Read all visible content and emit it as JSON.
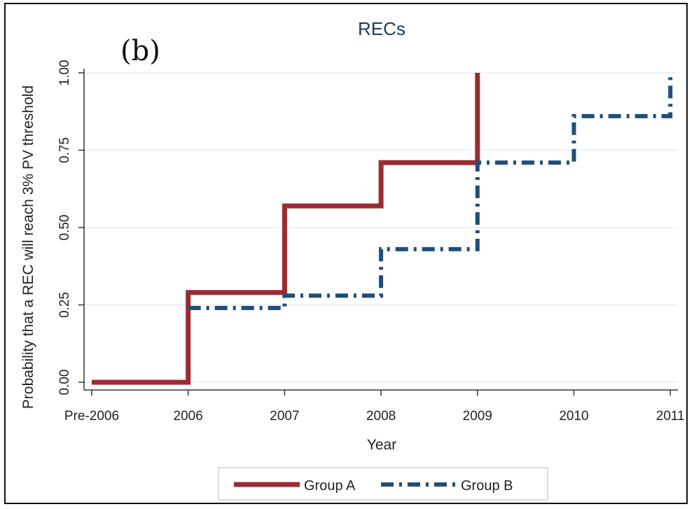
{
  "panel_label": "(b)",
  "chart_data": {
    "type": "line",
    "step": true,
    "title": "RECs",
    "xlabel": "Year",
    "ylabel": "Probability that a REC will reach 3% PV threshold",
    "categories": [
      "Pre-2006",
      "2006",
      "2007",
      "2008",
      "2009",
      "2010",
      "2011"
    ],
    "yticks": [
      "0.00",
      "0.25",
      "0.50",
      "0.75",
      "1.00"
    ],
    "ylim": [
      0,
      1
    ],
    "grid": true,
    "legend_position": "bottom",
    "series": [
      {
        "name": "Group A",
        "color": "#9b2c33",
        "style": "solid",
        "points": [
          [
            "Pre-2006",
            0.0
          ],
          [
            "2006",
            0.0
          ],
          [
            "2006",
            0.29
          ],
          [
            "2007",
            0.29
          ],
          [
            "2007",
            0.57
          ],
          [
            "2008",
            0.57
          ],
          [
            "2008",
            0.71
          ],
          [
            "2009",
            0.71
          ],
          [
            "2009",
            1.0
          ]
        ]
      },
      {
        "name": "Group B",
        "color": "#1f4e79",
        "style": "dash-dot",
        "points": [
          [
            "2006",
            0.24
          ],
          [
            "2007",
            0.24
          ],
          [
            "2007",
            0.28
          ],
          [
            "2008",
            0.28
          ],
          [
            "2008",
            0.43
          ],
          [
            "2009",
            0.43
          ],
          [
            "2009",
            0.71
          ],
          [
            "2010",
            0.71
          ],
          [
            "2010",
            0.86
          ],
          [
            "2011",
            0.86
          ],
          [
            "2011",
            1.0
          ]
        ]
      }
    ]
  }
}
